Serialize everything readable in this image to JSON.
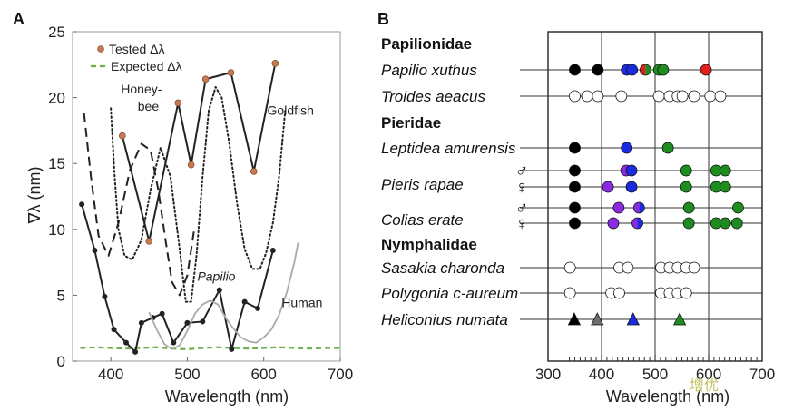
{
  "panel_a_label": "A",
  "panel_b_label": "B",
  "watermark": "增优",
  "chart_data": [
    {
      "type": "line",
      "panel": "A",
      "ylabel": "∇λ (nm)",
      "xlabel": "Wavelength (nm)",
      "xlim": [
        350,
        700
      ],
      "ylim": [
        0,
        25
      ],
      "xticks": [
        400,
        500,
        600,
        700
      ],
      "yticks": [
        0,
        5,
        10,
        15,
        20,
        25
      ],
      "legend": {
        "position": "top-left",
        "entries": [
          "Tested Δλ",
          "Expected Δλ"
        ]
      },
      "annotations": [
        {
          "text": "Honey-",
          "x": 440,
          "y": 20.3
        },
        {
          "text": "bee",
          "x": 449,
          "y": 19.0
        },
        {
          "text": "Goldfish",
          "x": 635,
          "y": 18.7
        },
        {
          "text": "Papilio",
          "x": 538,
          "y": 6.1
        },
        {
          "text": "Human",
          "x": 650,
          "y": 4.1
        }
      ],
      "series": [
        {
          "name": "Tested Δλ",
          "style": "solid-markers",
          "color": "#222222",
          "marker_color": "#c47a52",
          "x": [
            415,
            450,
            488,
            505,
            524,
            557,
            587,
            615
          ],
          "y": [
            17.1,
            9.1,
            19.6,
            14.9,
            21.4,
            21.9,
            14.4,
            22.6
          ]
        },
        {
          "name": "Expected Δλ",
          "style": "dashed",
          "color": "#6ab04c",
          "x": [
            360,
            380,
            400,
            420,
            440,
            460,
            480,
            500,
            520,
            540,
            560,
            580,
            600,
            620,
            640,
            660,
            680,
            700
          ],
          "y": [
            1.0,
            1.05,
            1.0,
            0.95,
            1.0,
            1.05,
            0.95,
            0.9,
            1.0,
            1.05,
            1.0,
            0.95,
            1.0,
            1.05,
            1.0,
            0.95,
            1.0,
            1.0
          ]
        },
        {
          "style": "solid-dots",
          "color": "#222222",
          "x": [
            362,
            379,
            392,
            404,
            420,
            432,
            440,
            455,
            467,
            482,
            500,
            520,
            542,
            558,
            575,
            592,
            612
          ],
          "y": [
            11.9,
            8.4,
            4.9,
            2.4,
            1.4,
            0.7,
            2.9,
            3.3,
            3.6,
            1.4,
            2.9,
            3.0,
            5.4,
            0.9,
            4.5,
            4.0,
            8.4
          ]
        },
        {
          "style": "dashed",
          "color": "#222222",
          "x": [
            365,
            374,
            384,
            397,
            410,
            425,
            440,
            452,
            462,
            472,
            480,
            490,
            500,
            509
          ],
          "y": [
            18.8,
            14.0,
            9.5,
            8.0,
            10.5,
            14.5,
            16.5,
            16.0,
            13.0,
            9.0,
            6.0,
            5.0,
            6.5,
            10.0
          ]
        },
        {
          "style": "dotted",
          "color": "#222222",
          "x": [
            400,
            405,
            410,
            418,
            428,
            440,
            452,
            465,
            478,
            490,
            498,
            505,
            512,
            520,
            528,
            537,
            545,
            555,
            565,
            575,
            585,
            595,
            603,
            612,
            620,
            628
          ],
          "y": [
            19.2,
            14.0,
            10.0,
            8.0,
            7.7,
            9.2,
            13.0,
            16.2,
            14.0,
            8.5,
            4.5,
            4.5,
            8.0,
            14.0,
            19.0,
            20.8,
            20.0,
            16.5,
            12.0,
            8.5,
            7.0,
            7.0,
            8.2,
            10.5,
            14.0,
            19.0
          ]
        },
        {
          "style": "solid",
          "color": "#aaaaaa",
          "x": [
            450,
            460,
            470,
            480,
            490,
            500,
            510,
            520,
            530,
            540,
            550,
            560,
            570,
            580,
            590,
            600,
            610,
            620,
            630,
            640,
            645
          ],
          "y": [
            3.7,
            2.4,
            1.3,
            0.9,
            1.2,
            2.3,
            3.6,
            4.3,
            4.6,
            4.3,
            3.3,
            2.5,
            1.8,
            1.5,
            1.4,
            1.8,
            2.4,
            3.5,
            5.2,
            7.5,
            9.0
          ]
        }
      ]
    },
    {
      "type": "scatter",
      "panel": "B",
      "xlabel": "Wavelength (nm)",
      "xlim": [
        300,
        700
      ],
      "xticks": [
        300,
        400,
        500,
        600,
        700
      ],
      "rows": [
        {
          "family": "Papilionidae"
        },
        {
          "species": "Papilio xuthus",
          "points": [
            {
              "x": 350,
              "color": "#000000",
              "shape": "circle"
            },
            {
              "x": 393,
              "color": "#000000",
              "shape": "circle"
            },
            {
              "x": 447,
              "color": "#1a2be0",
              "shape": "circle"
            },
            {
              "x": 457,
              "color": "#1a2be0",
              "shape": "circle"
            },
            {
              "x": 482,
              "color": "#e02020",
              "color2": "#1e8c1e",
              "shape": "split"
            },
            {
              "x": 507,
              "color": "#1e8c1e",
              "shape": "circle"
            },
            {
              "x": 515,
              "color": "#1e8c1e",
              "shape": "circle"
            },
            {
              "x": 595,
              "color": "#e02020",
              "shape": "circle"
            }
          ]
        },
        {
          "species": "Troides aeacus",
          "points": [
            {
              "x": 350,
              "color": "#ffffff",
              "shape": "circle"
            },
            {
              "x": 373,
              "color": "#ffffff",
              "shape": "circle"
            },
            {
              "x": 393,
              "color": "#ffffff",
              "shape": "circle"
            },
            {
              "x": 437,
              "color": "#ffffff",
              "shape": "circle"
            },
            {
              "x": 507,
              "color": "#ffffff",
              "shape": "circle"
            },
            {
              "x": 527,
              "color": "#ffffff",
              "shape": "circle"
            },
            {
              "x": 542,
              "color": "#ffffff",
              "shape": "circle"
            },
            {
              "x": 551,
              "color": "#ffffff",
              "shape": "circle"
            },
            {
              "x": 573,
              "color": "#ffffff",
              "shape": "circle"
            },
            {
              "x": 603,
              "color": "#ffffff",
              "shape": "circle"
            },
            {
              "x": 622,
              "color": "#ffffff",
              "shape": "circle"
            }
          ]
        },
        {
          "family": "Pieridae"
        },
        {
          "species": "Leptidea amurensis",
          "points": [
            {
              "x": 350,
              "color": "#000000",
              "shape": "circle"
            },
            {
              "x": 447,
              "color": "#1a2be0",
              "shape": "circle"
            },
            {
              "x": 524,
              "color": "#1e8c1e",
              "shape": "circle"
            }
          ]
        },
        {
          "species": "Pieris rapae",
          "sex": "♂",
          "points": [
            {
              "x": 350,
              "color": "#000000",
              "shape": "circle"
            },
            {
              "x": 446,
              "color": "#8a2be2",
              "shape": "circle"
            },
            {
              "x": 456,
              "color": "#1a2be0",
              "shape": "circle"
            },
            {
              "x": 558,
              "color": "#1e8c1e",
              "shape": "circle"
            },
            {
              "x": 614,
              "color": "#1e8c1e",
              "shape": "circle"
            },
            {
              "x": 631,
              "color": "#1e8c1e",
              "shape": "circle"
            }
          ]
        },
        {
          "sex": "♀",
          "points": [
            {
              "x": 350,
              "color": "#000000",
              "shape": "circle"
            },
            {
              "x": 412,
              "color": "#8a2be2",
              "shape": "circle"
            },
            {
              "x": 456,
              "color": "#1a2be0",
              "shape": "circle"
            },
            {
              "x": 558,
              "color": "#1e8c1e",
              "shape": "circle"
            },
            {
              "x": 614,
              "color": "#1e8c1e",
              "shape": "circle"
            },
            {
              "x": 631,
              "color": "#1e8c1e",
              "shape": "circle"
            }
          ]
        },
        {
          "species": "Colias erate",
          "sex": "♂",
          "points": [
            {
              "x": 350,
              "color": "#000000",
              "shape": "circle"
            },
            {
              "x": 432,
              "color": "#8a2be2",
              "shape": "circle"
            },
            {
              "x": 470,
              "color": "#8a2be2",
              "color2": "#1a2be0",
              "shape": "split"
            },
            {
              "x": 563,
              "color": "#1e8c1e",
              "shape": "circle"
            },
            {
              "x": 655,
              "color": "#1e8c1e",
              "shape": "circle"
            }
          ]
        },
        {
          "sex": "♀",
          "points": [
            {
              "x": 350,
              "color": "#000000",
              "shape": "circle"
            },
            {
              "x": 422,
              "color": "#8a2be2",
              "shape": "circle"
            },
            {
              "x": 467,
              "color": "#8a2be2",
              "color2": "#1a2be0",
              "shape": "split"
            },
            {
              "x": 563,
              "color": "#1e8c1e",
              "shape": "circle"
            },
            {
              "x": 614,
              "color": "#1e8c1e",
              "shape": "circle"
            },
            {
              "x": 631,
              "color": "#1e8c1e",
              "shape": "circle"
            },
            {
              "x": 653,
              "color": "#1e8c1e",
              "shape": "circle"
            }
          ]
        },
        {
          "family": "Nymphalidae"
        },
        {
          "species": "Sasakia charonda",
          "points": [
            {
              "x": 341,
              "color": "#ffffff",
              "shape": "circle"
            },
            {
              "x": 433,
              "color": "#ffffff",
              "shape": "circle"
            },
            {
              "x": 449,
              "color": "#ffffff",
              "shape": "circle"
            },
            {
              "x": 511,
              "color": "#ffffff",
              "shape": "circle"
            },
            {
              "x": 527,
              "color": "#ffffff",
              "shape": "circle"
            },
            {
              "x": 542,
              "color": "#ffffff",
              "shape": "circle"
            },
            {
              "x": 558,
              "color": "#ffffff",
              "shape": "circle"
            },
            {
              "x": 573,
              "color": "#ffffff",
              "shape": "circle"
            }
          ]
        },
        {
          "species": "Polygonia c-aureum",
          "points": [
            {
              "x": 341,
              "color": "#ffffff",
              "shape": "circle"
            },
            {
              "x": 418,
              "color": "#ffffff",
              "shape": "circle"
            },
            {
              "x": 433,
              "color": "#ffffff",
              "shape": "circle"
            },
            {
              "x": 511,
              "color": "#ffffff",
              "shape": "circle"
            },
            {
              "x": 527,
              "color": "#ffffff",
              "shape": "circle"
            },
            {
              "x": 542,
              "color": "#ffffff",
              "shape": "circle"
            },
            {
              "x": 558,
              "color": "#ffffff",
              "shape": "circle"
            }
          ]
        },
        {
          "species": "Heliconius numata",
          "points": [
            {
              "x": 349,
              "color": "#000000",
              "shape": "triangle"
            },
            {
              "x": 392,
              "color": "#6e6e6e",
              "shape": "triangle"
            },
            {
              "x": 459,
              "color": "#1a2be0",
              "shape": "triangle"
            },
            {
              "x": 546,
              "color": "#1e8c1e",
              "shape": "triangle"
            }
          ]
        }
      ]
    }
  ]
}
